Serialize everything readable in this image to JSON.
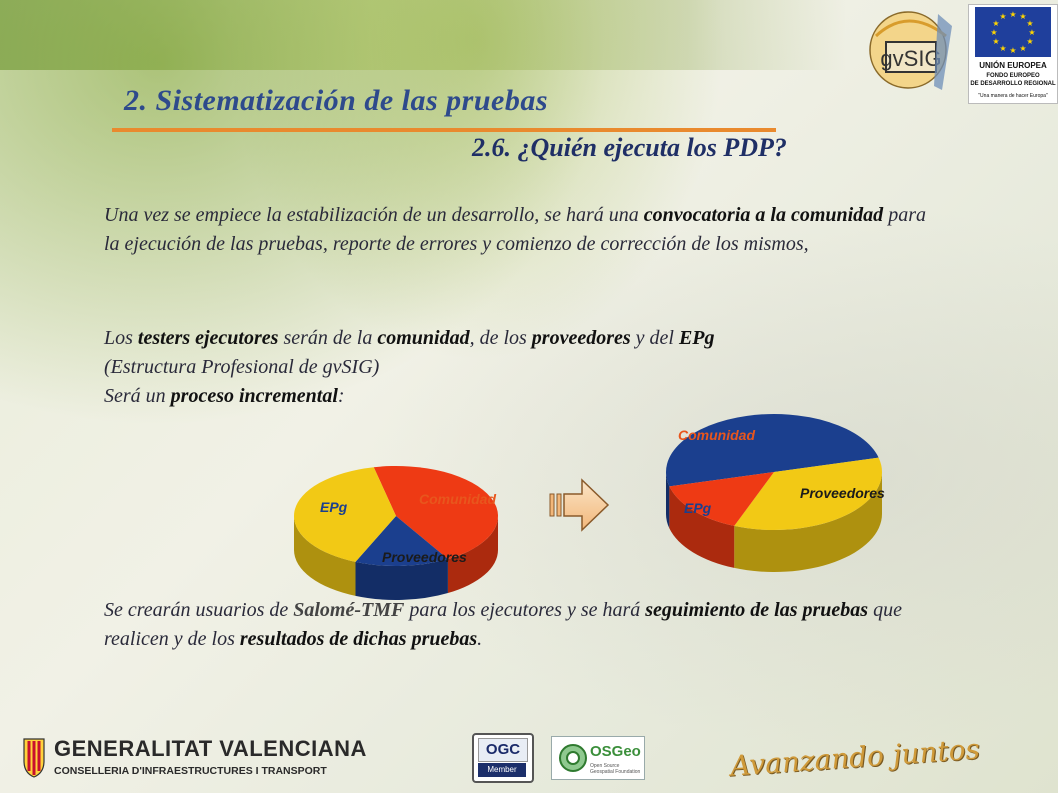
{
  "header": {
    "title": "2. Sistematización  de las pruebas",
    "subtitle": "2.6. ¿Quién ejecuta los PDP?"
  },
  "paragraphs": {
    "p1": {
      "t1": "Una vez se empiece la estabilización de un desarrollo, se hará una ",
      "b1": "convocatoria a la comunidad",
      "t2": " para la ejecución de las pruebas, reporte de errores y comienzo de corrección de los mismos,"
    },
    "p2": {
      "t1": "Los ",
      "b1": "testers ejecutores",
      "t2": " serán de la ",
      "b2": "comunidad",
      "t3": ", de los ",
      "b3": "proveedores",
      "t4": " y del ",
      "b4": "EPg",
      "t5": "(Estructura Profesional de gvSIG)",
      "t6": "Será un ",
      "b5": "proceso incremental",
      "t7": ":"
    },
    "p3": {
      "t1": "Se crearán usuarios de ",
      "b1": "Salomé-TMF",
      "t2": " para los ejecutores y se hará ",
      "b2": "seguimiento de las pruebas",
      "t3": " que realicen y de los ",
      "b3": "resultados de dichas pruebas",
      "t4": "."
    }
  },
  "chart_data": [
    {
      "type": "pie",
      "labels": [
        "EPg",
        "Comunidad",
        "Proveedores"
      ],
      "values": [
        45,
        15,
        40
      ],
      "colors": [
        "#ee3a14",
        "#1b3f8e",
        "#f2c915"
      ]
    },
    {
      "type": "pie",
      "labels": [
        "Comunidad",
        "Proveedores",
        "EPg"
      ],
      "values": [
        50,
        35,
        15
      ],
      "colors": [
        "#1b3f8e",
        "#f2c915",
        "#ee3a14"
      ]
    }
  ],
  "logos": {
    "gvsig": "gvSIG",
    "eu_title": "UNIÓN EUROPEA",
    "eu_fund_line1": "FONDO EUROPEO",
    "eu_fund_line2": "DE DESARROLLO REGIONAL",
    "eu_motto": "\"Una manera de hacer Europa\"",
    "generalitat_name": "GENERALITAT VALENCIANA",
    "generalitat_sub": "CONSELLERIA D'INFRAESTRUCTURES I TRANSPORT",
    "ogc_top": "OGC",
    "ogc_bottom": "Member",
    "osgeo": "OSGeo",
    "osgeo_small": "Open Source Geospatial Foundation",
    "slogan": "Avanzando juntos"
  },
  "colors": {
    "title": "#2e4a8c",
    "accent_line": "#e98a2e",
    "label_orange": "#e8561d"
  },
  "icons": {
    "arrow": "right-arrow-icon"
  }
}
